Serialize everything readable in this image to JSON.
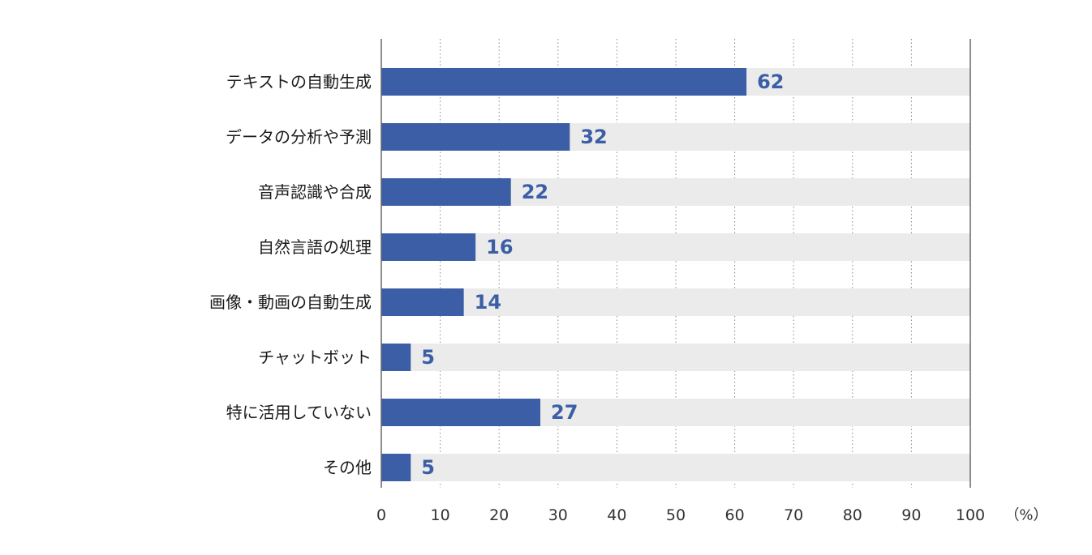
{
  "chart_data": {
    "type": "bar",
    "orientation": "horizontal",
    "categories": [
      "テキストの自動生成",
      "データの分析や予測",
      "音声認識や合成",
      "自然言語の処理",
      "画像・動画の自動生成",
      "チャットボット",
      "特に活用していない",
      "その他"
    ],
    "values": [
      62,
      32,
      22,
      16,
      14,
      5,
      27,
      5
    ],
    "xlim": [
      0,
      100
    ],
    "x_ticks": [
      "0",
      "10",
      "20",
      "30",
      "40",
      "50",
      "60",
      "70",
      "80",
      "90",
      "100"
    ],
    "unit_label": "（%）",
    "grid": "vertical dotted",
    "colors": {
      "bar": "#3b5ea6",
      "track": "#ebebeb",
      "value_text": "#3b5ea6",
      "grid": "#888888",
      "axis": "#666666"
    }
  }
}
